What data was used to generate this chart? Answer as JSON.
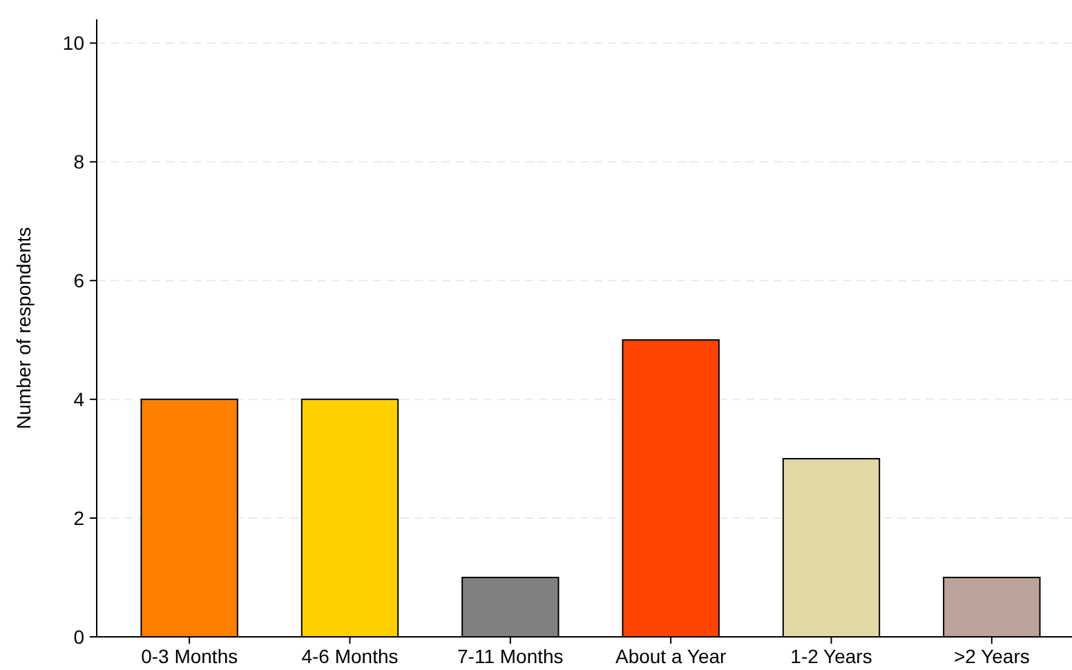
{
  "chart_data": {
    "type": "bar",
    "ylabel": "Number of respondents",
    "categories": [
      "0-3 Months",
      "4-6 Months",
      "7-11 Months",
      "About a Year",
      "1-2 Years",
      ">2 Years"
    ],
    "values": [
      4,
      4,
      1,
      5,
      3,
      1
    ],
    "colors": [
      "#ff7f00",
      "#ffd000",
      "#808080",
      "#ff4500",
      "#e3d9a6",
      "#bca39a"
    ],
    "ylim": [
      0,
      10.4
    ],
    "yticks": [
      0,
      2,
      4,
      6,
      8,
      10
    ],
    "grid": "y"
  }
}
